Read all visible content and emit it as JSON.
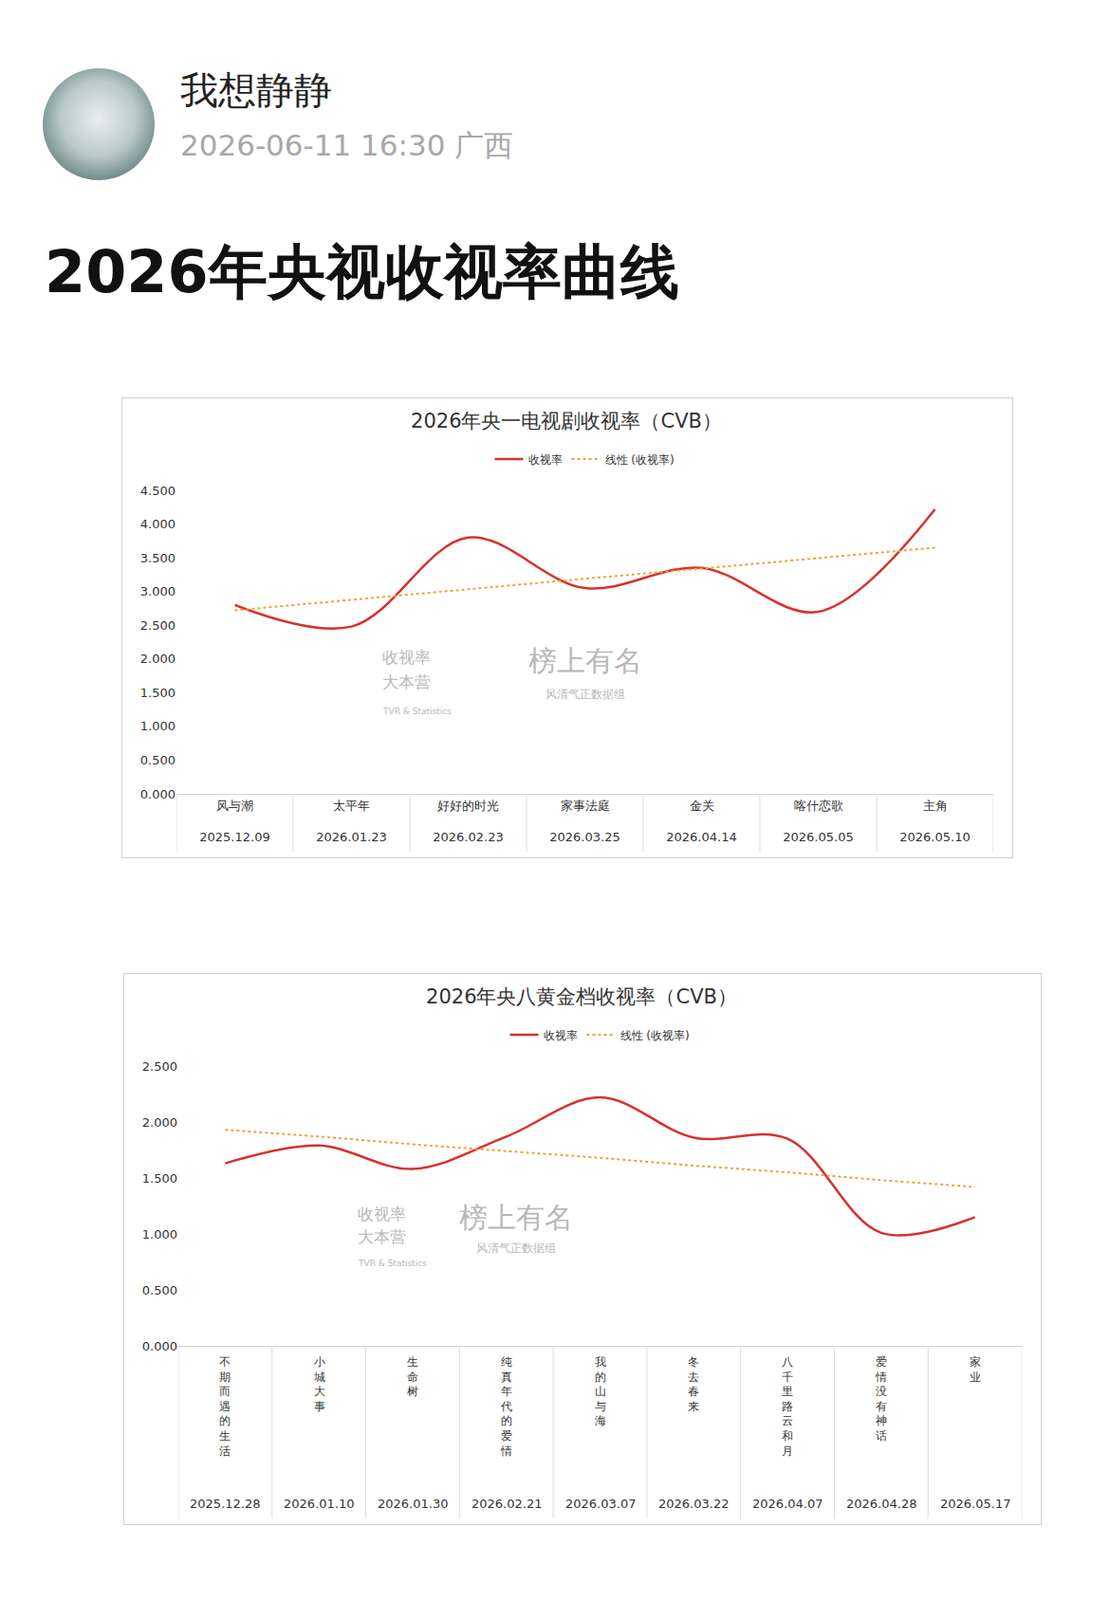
{
  "post": {
    "username": "我想静静",
    "time": "2026-06-11 16:30",
    "location": "广西",
    "title": "2026年央视收视率曲线"
  },
  "chart_data": [
    {
      "type": "line",
      "title": "2026年央一电视剧收视率（CVB）",
      "categories": [
        "风与潮",
        "太平年",
        "好好的时光",
        "家事法庭",
        "金关",
        "喀什恋歌",
        "主角"
      ],
      "category_dates": [
        "2025.12.09",
        "2026.01.23",
        "2026.02.23",
        "2026.03.25",
        "2026.04.14",
        "2026.05.05",
        "2026.05.10"
      ],
      "series": [
        {
          "name": "收视率",
          "color": "#d9302c",
          "line_style": "solid",
          "values": [
            2.8,
            2.48,
            3.8,
            3.05,
            3.35,
            2.7,
            4.22
          ]
        },
        {
          "name": "线性 (收视率)",
          "color": "#f0a23c",
          "line_style": "dotted",
          "values": [
            2.72,
            2.88,
            3.03,
            3.19,
            3.34,
            3.5,
            3.65
          ]
        }
      ],
      "ylim": [
        0,
        4.5
      ],
      "yticks": [
        {
          "value": 0,
          "label": "0.000"
        },
        {
          "value": 0.5,
          "label": "0.500"
        },
        {
          "value": 1,
          "label": "1.000"
        },
        {
          "value": 1.5,
          "label": "1.500"
        },
        {
          "value": 2,
          "label": "2.000"
        },
        {
          "value": 2.5,
          "label": "2.500"
        },
        {
          "value": 3,
          "label": "3.000"
        },
        {
          "value": 3.5,
          "label": "3.500"
        },
        {
          "value": 4,
          "label": "4.000"
        },
        {
          "value": 4.5,
          "label": "4.500"
        }
      ],
      "grid": false,
      "legend": "top",
      "watermarks": [
        "收视率",
        "大本营",
        "TVR & Statistics",
        "榜上有名",
        "风清气正数据组"
      ]
    },
    {
      "type": "line",
      "title": "2026年央八黄金档收视率（CVB）",
      "categories": [
        "不期而遇的生活",
        "小城大事",
        "生命树",
        "纯真年代的爱情",
        "我的山与海",
        "冬去春来",
        "八千里路云和月",
        "爱情没有神话",
        "家业"
      ],
      "category_dates": [
        "2025.12.28",
        "2026.01.10",
        "2026.01.30",
        "2026.02.21",
        "2026.03.07",
        "2026.03.22",
        "2026.04.07",
        "2026.04.28",
        "2026.05.17"
      ],
      "series": [
        {
          "name": "收视率",
          "color": "#d9302c",
          "line_style": "solid",
          "values": [
            1.63,
            1.79,
            1.58,
            1.87,
            2.22,
            1.86,
            1.85,
            1.01,
            1.15
          ]
        },
        {
          "name": "线性 (收视率)",
          "color": "#f0a23c",
          "line_style": "dotted",
          "values": [
            1.93,
            1.87,
            1.8,
            1.74,
            1.68,
            1.61,
            1.55,
            1.48,
            1.42
          ]
        }
      ],
      "ylim": [
        0,
        2.5
      ],
      "yticks": [
        {
          "value": 0,
          "label": "0.000"
        },
        {
          "value": 0.5,
          "label": "0.500"
        },
        {
          "value": 1,
          "label": "1.000"
        },
        {
          "value": 1.5,
          "label": "1.500"
        },
        {
          "value": 2,
          "label": "2.000"
        },
        {
          "value": 2.5,
          "label": "2.500"
        }
      ],
      "grid": false,
      "legend": "top",
      "watermarks": [
        "收视率",
        "大本营",
        "TVR & Statistics",
        "榜上有名",
        "风清气正数据组"
      ]
    }
  ]
}
